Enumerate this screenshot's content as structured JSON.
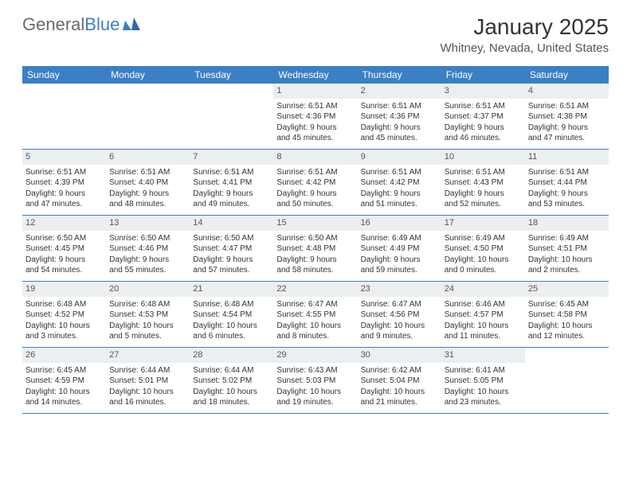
{
  "logo": {
    "text1": "General",
    "text2": "Blue"
  },
  "title": "January 2025",
  "location": "Whitney, Nevada, United States",
  "colors": {
    "header_bg": "#3b7fc4",
    "daynum_bg": "#eceff1",
    "row_border": "#3b7fc4",
    "logo_gray": "#6b6b6b",
    "logo_blue": "#3b7fc4"
  },
  "weekdays": [
    "Sunday",
    "Monday",
    "Tuesday",
    "Wednesday",
    "Thursday",
    "Friday",
    "Saturday"
  ],
  "weeks": [
    [
      {
        "empty": true
      },
      {
        "empty": true
      },
      {
        "empty": true
      },
      {
        "day": "1",
        "sunrise": "Sunrise: 6:51 AM",
        "sunset": "Sunset: 4:36 PM",
        "daylight1": "Daylight: 9 hours",
        "daylight2": "and 45 minutes."
      },
      {
        "day": "2",
        "sunrise": "Sunrise: 6:51 AM",
        "sunset": "Sunset: 4:36 PM",
        "daylight1": "Daylight: 9 hours",
        "daylight2": "and 45 minutes."
      },
      {
        "day": "3",
        "sunrise": "Sunrise: 6:51 AM",
        "sunset": "Sunset: 4:37 PM",
        "daylight1": "Daylight: 9 hours",
        "daylight2": "and 46 minutes."
      },
      {
        "day": "4",
        "sunrise": "Sunrise: 6:51 AM",
        "sunset": "Sunset: 4:38 PM",
        "daylight1": "Daylight: 9 hours",
        "daylight2": "and 47 minutes."
      }
    ],
    [
      {
        "day": "5",
        "sunrise": "Sunrise: 6:51 AM",
        "sunset": "Sunset: 4:39 PM",
        "daylight1": "Daylight: 9 hours",
        "daylight2": "and 47 minutes."
      },
      {
        "day": "6",
        "sunrise": "Sunrise: 6:51 AM",
        "sunset": "Sunset: 4:40 PM",
        "daylight1": "Daylight: 9 hours",
        "daylight2": "and 48 minutes."
      },
      {
        "day": "7",
        "sunrise": "Sunrise: 6:51 AM",
        "sunset": "Sunset: 4:41 PM",
        "daylight1": "Daylight: 9 hours",
        "daylight2": "and 49 minutes."
      },
      {
        "day": "8",
        "sunrise": "Sunrise: 6:51 AM",
        "sunset": "Sunset: 4:42 PM",
        "daylight1": "Daylight: 9 hours",
        "daylight2": "and 50 minutes."
      },
      {
        "day": "9",
        "sunrise": "Sunrise: 6:51 AM",
        "sunset": "Sunset: 4:42 PM",
        "daylight1": "Daylight: 9 hours",
        "daylight2": "and 51 minutes."
      },
      {
        "day": "10",
        "sunrise": "Sunrise: 6:51 AM",
        "sunset": "Sunset: 4:43 PM",
        "daylight1": "Daylight: 9 hours",
        "daylight2": "and 52 minutes."
      },
      {
        "day": "11",
        "sunrise": "Sunrise: 6:51 AM",
        "sunset": "Sunset: 4:44 PM",
        "daylight1": "Daylight: 9 hours",
        "daylight2": "and 53 minutes."
      }
    ],
    [
      {
        "day": "12",
        "sunrise": "Sunrise: 6:50 AM",
        "sunset": "Sunset: 4:45 PM",
        "daylight1": "Daylight: 9 hours",
        "daylight2": "and 54 minutes."
      },
      {
        "day": "13",
        "sunrise": "Sunrise: 6:50 AM",
        "sunset": "Sunset: 4:46 PM",
        "daylight1": "Daylight: 9 hours",
        "daylight2": "and 55 minutes."
      },
      {
        "day": "14",
        "sunrise": "Sunrise: 6:50 AM",
        "sunset": "Sunset: 4:47 PM",
        "daylight1": "Daylight: 9 hours",
        "daylight2": "and 57 minutes."
      },
      {
        "day": "15",
        "sunrise": "Sunrise: 6:50 AM",
        "sunset": "Sunset: 4:48 PM",
        "daylight1": "Daylight: 9 hours",
        "daylight2": "and 58 minutes."
      },
      {
        "day": "16",
        "sunrise": "Sunrise: 6:49 AM",
        "sunset": "Sunset: 4:49 PM",
        "daylight1": "Daylight: 9 hours",
        "daylight2": "and 59 minutes."
      },
      {
        "day": "17",
        "sunrise": "Sunrise: 6:49 AM",
        "sunset": "Sunset: 4:50 PM",
        "daylight1": "Daylight: 10 hours",
        "daylight2": "and 0 minutes."
      },
      {
        "day": "18",
        "sunrise": "Sunrise: 6:49 AM",
        "sunset": "Sunset: 4:51 PM",
        "daylight1": "Daylight: 10 hours",
        "daylight2": "and 2 minutes."
      }
    ],
    [
      {
        "day": "19",
        "sunrise": "Sunrise: 6:48 AM",
        "sunset": "Sunset: 4:52 PM",
        "daylight1": "Daylight: 10 hours",
        "daylight2": "and 3 minutes."
      },
      {
        "day": "20",
        "sunrise": "Sunrise: 6:48 AM",
        "sunset": "Sunset: 4:53 PM",
        "daylight1": "Daylight: 10 hours",
        "daylight2": "and 5 minutes."
      },
      {
        "day": "21",
        "sunrise": "Sunrise: 6:48 AM",
        "sunset": "Sunset: 4:54 PM",
        "daylight1": "Daylight: 10 hours",
        "daylight2": "and 6 minutes."
      },
      {
        "day": "22",
        "sunrise": "Sunrise: 6:47 AM",
        "sunset": "Sunset: 4:55 PM",
        "daylight1": "Daylight: 10 hours",
        "daylight2": "and 8 minutes."
      },
      {
        "day": "23",
        "sunrise": "Sunrise: 6:47 AM",
        "sunset": "Sunset: 4:56 PM",
        "daylight1": "Daylight: 10 hours",
        "daylight2": "and 9 minutes."
      },
      {
        "day": "24",
        "sunrise": "Sunrise: 6:46 AM",
        "sunset": "Sunset: 4:57 PM",
        "daylight1": "Daylight: 10 hours",
        "daylight2": "and 11 minutes."
      },
      {
        "day": "25",
        "sunrise": "Sunrise: 6:45 AM",
        "sunset": "Sunset: 4:58 PM",
        "daylight1": "Daylight: 10 hours",
        "daylight2": "and 12 minutes."
      }
    ],
    [
      {
        "day": "26",
        "sunrise": "Sunrise: 6:45 AM",
        "sunset": "Sunset: 4:59 PM",
        "daylight1": "Daylight: 10 hours",
        "daylight2": "and 14 minutes."
      },
      {
        "day": "27",
        "sunrise": "Sunrise: 6:44 AM",
        "sunset": "Sunset: 5:01 PM",
        "daylight1": "Daylight: 10 hours",
        "daylight2": "and 16 minutes."
      },
      {
        "day": "28",
        "sunrise": "Sunrise: 6:44 AM",
        "sunset": "Sunset: 5:02 PM",
        "daylight1": "Daylight: 10 hours",
        "daylight2": "and 18 minutes."
      },
      {
        "day": "29",
        "sunrise": "Sunrise: 6:43 AM",
        "sunset": "Sunset: 5:03 PM",
        "daylight1": "Daylight: 10 hours",
        "daylight2": "and 19 minutes."
      },
      {
        "day": "30",
        "sunrise": "Sunrise: 6:42 AM",
        "sunset": "Sunset: 5:04 PM",
        "daylight1": "Daylight: 10 hours",
        "daylight2": "and 21 minutes."
      },
      {
        "day": "31",
        "sunrise": "Sunrise: 6:41 AM",
        "sunset": "Sunset: 5:05 PM",
        "daylight1": "Daylight: 10 hours",
        "daylight2": "and 23 minutes."
      },
      {
        "empty": true
      }
    ]
  ]
}
